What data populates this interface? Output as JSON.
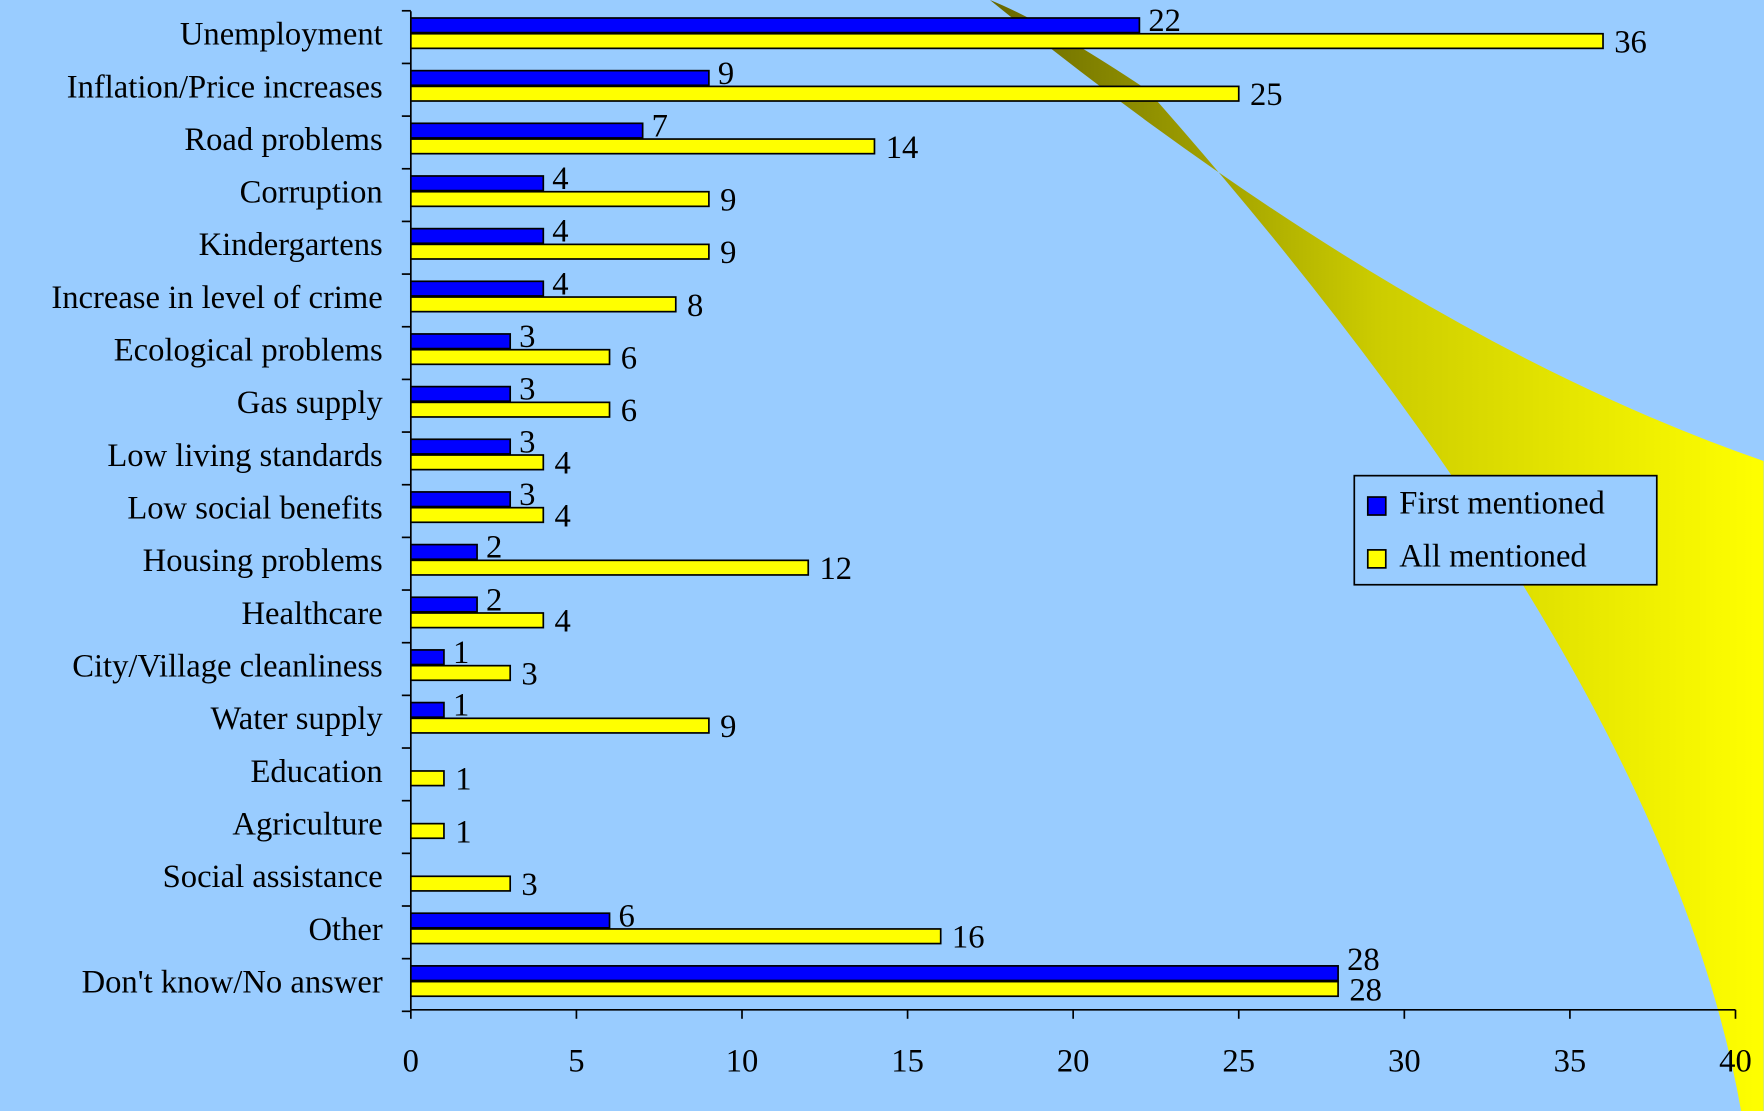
{
  "chart_data": {
    "type": "bar",
    "orientation": "horizontal",
    "categories": [
      "Unemployment",
      "Inflation/Price increases",
      "Road problems",
      "Corruption",
      "Kindergartens",
      "Increase in level of crime",
      "Ecological problems",
      "Gas supply",
      "Low living standards",
      "Low social benefits",
      "Housing problems",
      "Healthcare",
      "City/Village cleanliness",
      "Water supply",
      "Education",
      "Agriculture",
      "Social assistance",
      "Other",
      "Don't know/No answer"
    ],
    "series": [
      {
        "name": "First mentioned",
        "color": "#0000ff",
        "values": [
          22,
          9,
          7,
          4,
          4,
          4,
          3,
          3,
          3,
          3,
          2,
          2,
          1,
          1,
          null,
          null,
          null,
          6,
          28
        ]
      },
      {
        "name": "All mentioned",
        "color": "#ffff00",
        "values": [
          36,
          25,
          14,
          9,
          9,
          8,
          6,
          6,
          4,
          4,
          12,
          4,
          3,
          9,
          1,
          1,
          3,
          16,
          28
        ]
      }
    ],
    "xlim": [
      0,
      40
    ],
    "xticks": [
      0,
      5,
      10,
      15,
      20,
      25,
      30,
      35,
      40
    ],
    "legend": "right"
  }
}
